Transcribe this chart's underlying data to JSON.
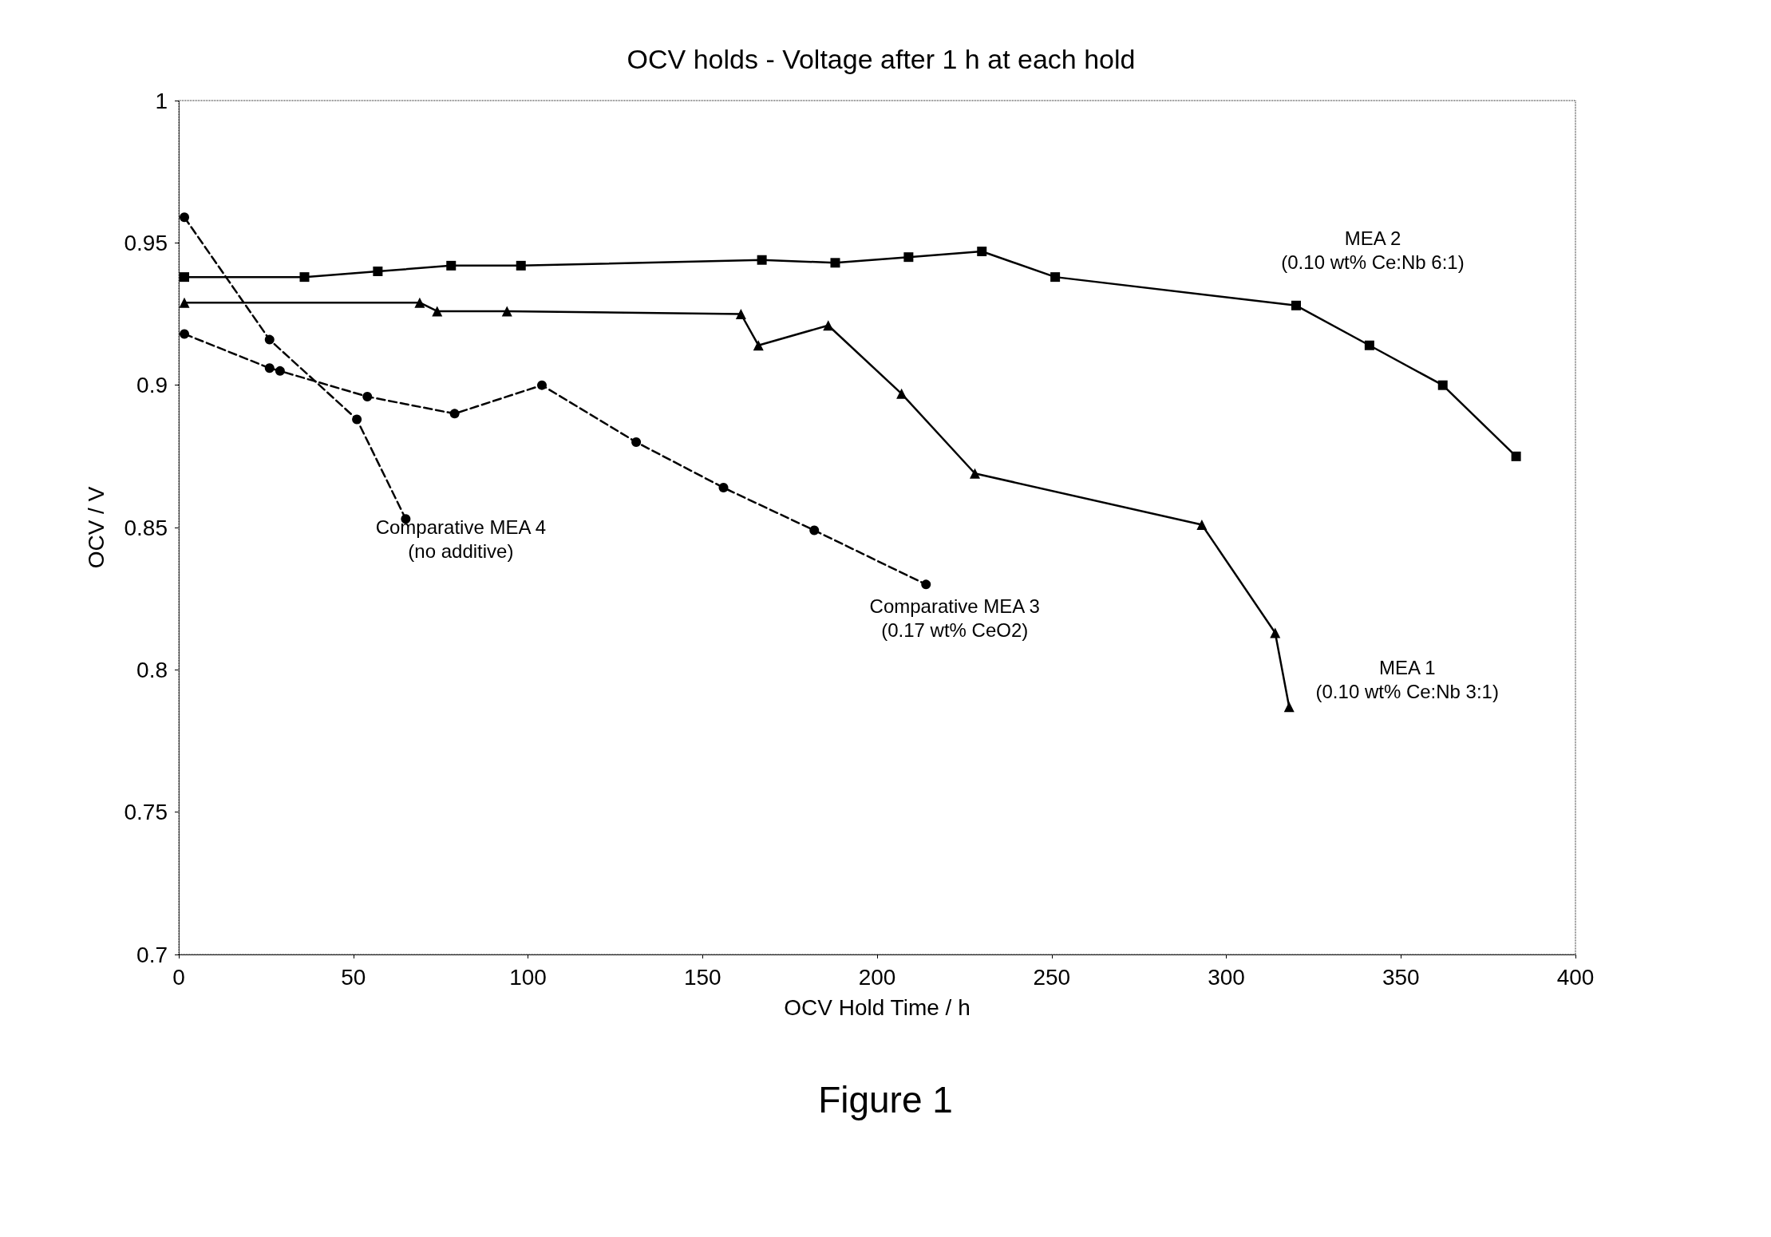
{
  "chart_data": {
    "type": "line",
    "title": "OCV holds - Voltage after 1 h at each hold",
    "xlabel": "OCV Hold Time / h",
    "ylabel": "OCV / V",
    "xlim": [
      0,
      400
    ],
    "xticks": [
      0,
      50,
      100,
      150,
      200,
      250,
      300,
      350,
      400
    ],
    "ylim": [
      0.7,
      1
    ],
    "yticks": [
      0.7,
      0.75,
      0.8,
      0.85,
      0.9,
      0.95,
      1
    ],
    "grid": false,
    "legend": false,
    "series": [
      {
        "name": "MEA 2\n(0.10 wt% Ce:Nb 6:1)",
        "color": "#000000",
        "marker": "square",
        "line_style": "solid",
        "x": [
          1.6,
          36,
          57,
          78,
          98,
          167,
          188,
          209,
          230,
          251,
          320,
          341,
          362,
          383
        ],
        "values": [
          0.938,
          0.938,
          0.94,
          0.942,
          0.942,
          0.944,
          0.943,
          0.945,
          0.947,
          0.938,
          0.928,
          0.914,
          0.9,
          0.875
        ]
      },
      {
        "name": "MEA 1\n(0.10 wt% Ce:Nb 3:1)",
        "color": "#000000",
        "marker": "triangle",
        "line_style": "solid",
        "x": [
          1.6,
          69,
          74,
          94,
          161,
          166,
          186,
          207,
          228,
          293,
          314,
          318
        ],
        "values": [
          0.929,
          0.929,
          0.926,
          0.926,
          0.925,
          0.914,
          0.921,
          0.897,
          0.869,
          0.851,
          0.813,
          0.787
        ]
      },
      {
        "name": "Comparative MEA 3\n(0.17 wt% CeO2)",
        "color": "#000000",
        "marker": "circle",
        "line_style": "dashed",
        "x": [
          1.6,
          26,
          29,
          54,
          79,
          104,
          131,
          156,
          182,
          214
        ],
        "values": [
          0.918,
          0.906,
          0.905,
          0.896,
          0.89,
          0.9,
          0.88,
          0.864,
          0.849,
          0.83
        ]
      },
      {
        "name": "Comparative MEA 4\n(no additive)",
        "color": "#000000",
        "marker": "circle",
        "line_style": "dashed",
        "x": [
          1.6,
          26,
          51,
          65
        ],
        "values": [
          0.959,
          0.916,
          0.888,
          0.853
        ]
      }
    ],
    "annotations": [
      "Figure 1"
    ]
  }
}
